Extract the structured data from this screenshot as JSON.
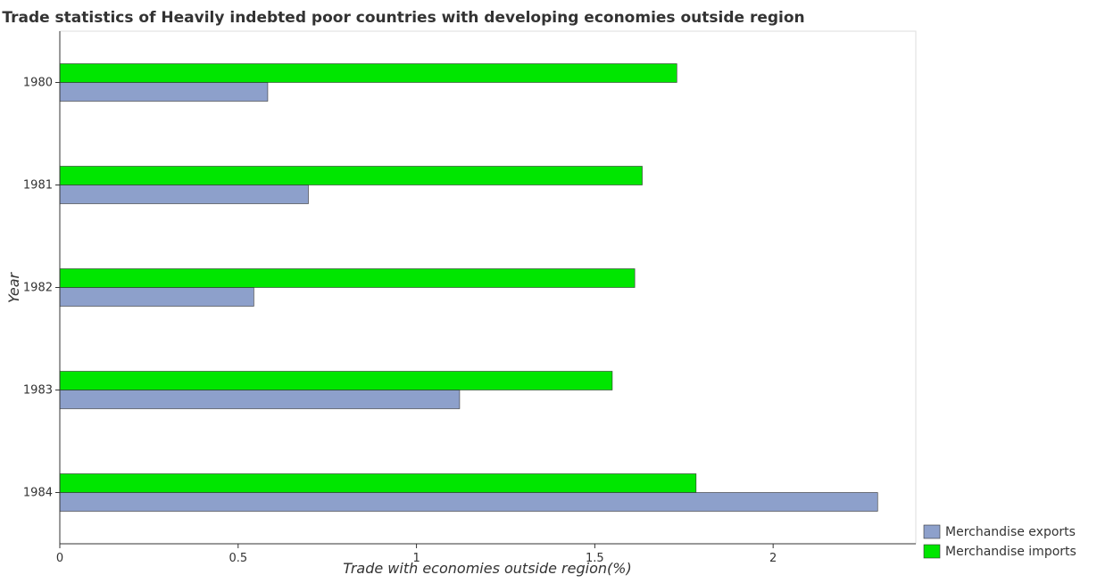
{
  "chart_data": {
    "type": "bar",
    "orientation": "horizontal",
    "title": "Trade statistics of Heavily indebted poor countries with developing economies outside region",
    "xlabel": "Trade with economies outside region(%)",
    "ylabel": "Year",
    "categories": [
      "1980",
      "1981",
      "1982",
      "1983",
      "1984"
    ],
    "series": [
      {
        "name": "Merchandise exports",
        "color": "#8da0cb",
        "values": [
          0.583,
          0.697,
          0.544,
          1.121,
          2.293
        ]
      },
      {
        "name": "Merchandise imports",
        "color": "#00e600",
        "values": [
          1.73,
          1.633,
          1.612,
          1.549,
          1.784
        ]
      }
    ],
    "xlim": [
      0,
      2.4
    ],
    "xticks": [
      0,
      0.5,
      1,
      1.5,
      2
    ],
    "xtick_labels": [
      "0",
      "0.5",
      "1",
      "1.5",
      "2"
    ],
    "grid": false,
    "legend_position": "bottom-right"
  }
}
